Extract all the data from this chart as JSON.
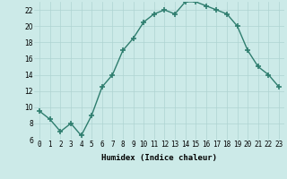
{
  "x": [
    0,
    1,
    2,
    3,
    4,
    5,
    6,
    7,
    8,
    9,
    10,
    11,
    12,
    13,
    14,
    15,
    16,
    17,
    18,
    19,
    20,
    21,
    22,
    23
  ],
  "y": [
    9.5,
    8.5,
    7.0,
    8.0,
    6.5,
    9.0,
    12.5,
    14.0,
    17.0,
    18.5,
    20.5,
    21.5,
    22.0,
    21.5,
    23.0,
    23.0,
    22.5,
    22.0,
    21.5,
    20.0,
    17.0,
    15.0,
    14.0,
    12.5
  ],
  "line_color": "#2e7d6e",
  "marker": "+",
  "marker_size": 4,
  "marker_lw": 1.2,
  "bg_color": "#cceae8",
  "grid_color": "#aed4d2",
  "xlabel": "Humidex (Indice chaleur)",
  "xlim": [
    -0.5,
    23.5
  ],
  "ylim": [
    6,
    23
  ],
  "yticks": [
    6,
    8,
    10,
    12,
    14,
    16,
    18,
    20,
    22
  ],
  "xticks": [
    0,
    1,
    2,
    3,
    4,
    5,
    6,
    7,
    8,
    9,
    10,
    11,
    12,
    13,
    14,
    15,
    16,
    17,
    18,
    19,
    20,
    21,
    22,
    23
  ],
  "xlabel_fontsize": 6.5,
  "tick_fontsize": 5.5,
  "line_width": 1.0
}
